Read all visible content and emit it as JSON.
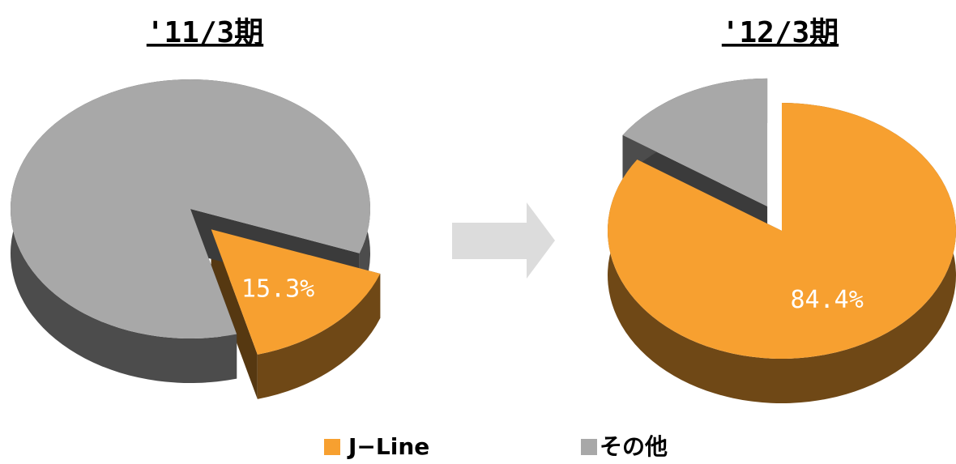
{
  "chart_data": [
    {
      "type": "pie",
      "title": "'11/3期",
      "categories": [
        "J−Line",
        "その他"
      ],
      "values": [
        15.3,
        84.7
      ],
      "value_labels": [
        "15.3%",
        null
      ],
      "colors": [
        "#f7a030",
        "#a8a8a8"
      ],
      "start_angle": 110,
      "exploded": 0
    },
    {
      "type": "pie",
      "title": "'12/3期",
      "categories": [
        "J−Line",
        "その他"
      ],
      "values": [
        84.4,
        15.6
      ],
      "value_labels": [
        "84.4%",
        null
      ],
      "colors": [
        "#f7a030",
        "#a8a8a8"
      ],
      "start_angle": 0,
      "exploded": 1
    }
  ]
}
